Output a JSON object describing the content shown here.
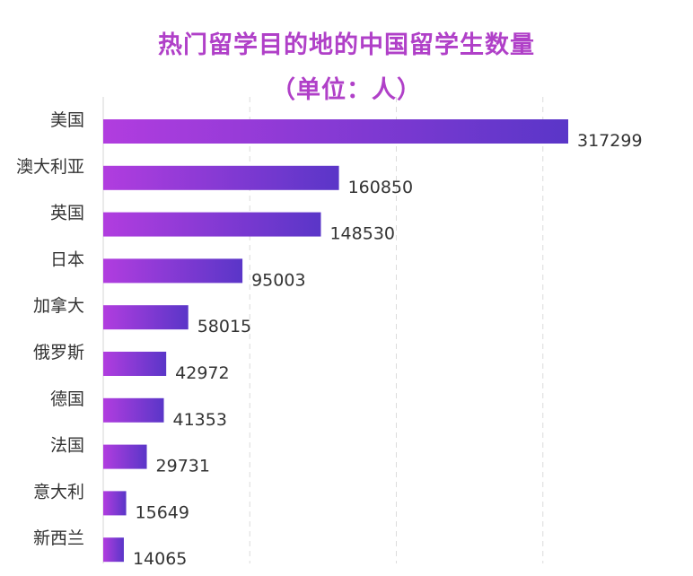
{
  "chart_data": {
    "type": "bar",
    "orientation": "horizontal",
    "title": "热门留学目的地的中国留学生数量",
    "subtitle": "（单位：人）",
    "categories": [
      "美国",
      "澳大利亚",
      "英国",
      "日本",
      "加拿大",
      "俄罗斯",
      "德国",
      "法国",
      "意大利",
      "新西兰"
    ],
    "values": [
      317299,
      160850,
      148530,
      95003,
      58015,
      42972,
      41353,
      29731,
      15649,
      14065
    ],
    "value_labels": [
      "317299",
      "160850",
      "148530",
      "95003",
      "58015",
      "42972",
      "41353",
      "29731",
      "15649",
      "14065"
    ],
    "xlim": [
      0,
      400000
    ],
    "grid": true,
    "gradient": [
      "#b13ddf",
      "#5a36c8"
    ]
  }
}
